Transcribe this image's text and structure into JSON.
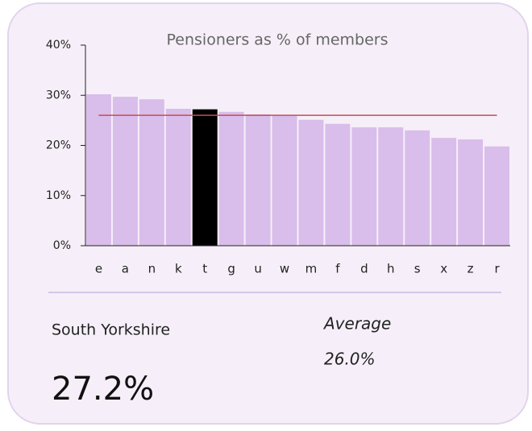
{
  "chart_data": {
    "type": "bar",
    "title": "Pensioners as % of members",
    "categories": [
      "e",
      "a",
      "n",
      "k",
      "t",
      "g",
      "u",
      "w",
      "m",
      "f",
      "d",
      "h",
      "s",
      "x",
      "z",
      "r"
    ],
    "values": [
      30.2,
      29.7,
      29.2,
      27.3,
      27.2,
      26.7,
      26.2,
      25.9,
      25.1,
      24.3,
      23.6,
      23.6,
      23.0,
      21.5,
      21.2,
      19.8
    ],
    "color": "#d9bdea",
    "highlight": "t",
    "highlight_color": "#000000",
    "ylim": [
      0,
      40
    ],
    "yticks": [
      {
        "value": 0,
        "label": "0%"
      },
      {
        "value": 10,
        "label": "10%"
      },
      {
        "value": 20,
        "label": "20%"
      },
      {
        "value": 30,
        "label": "30%"
      },
      {
        "value": 40,
        "label": "40%"
      }
    ],
    "average": {
      "label": "Average",
      "value": 26.0,
      "value_label": "26.0%",
      "color": "#c0504d"
    },
    "selected": {
      "name": "South Yorkshire",
      "value_label": "27.2%"
    }
  }
}
